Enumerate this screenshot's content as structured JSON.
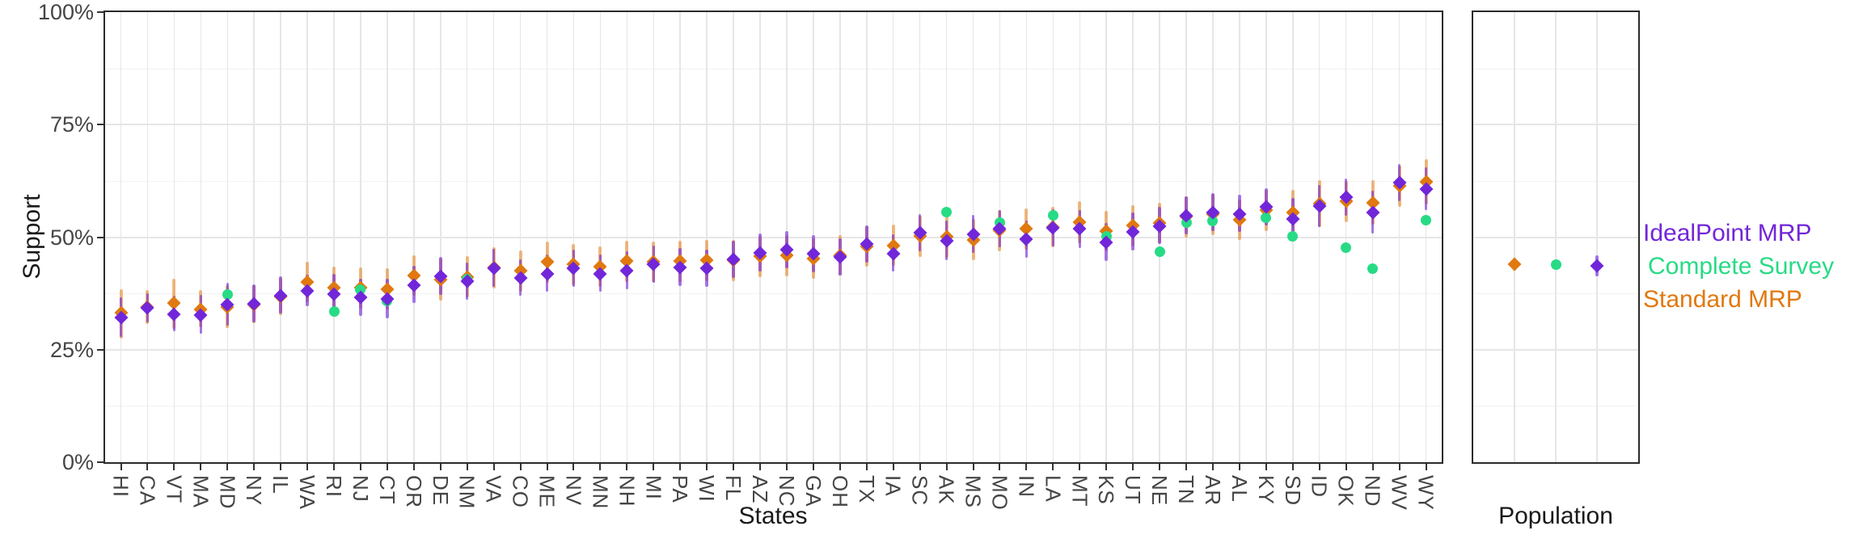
{
  "figure": {
    "y_axis": {
      "title": "Support",
      "tick_labels": [
        "100%",
        "75%",
        "50%",
        "25%",
        "0%"
      ],
      "tick_values": [
        100,
        75,
        50,
        25,
        0
      ],
      "minor_gridline_values": [
        87.5,
        62.5,
        37.5,
        12.5
      ]
    },
    "x_axis_main": {
      "title": "States"
    },
    "x_axis_right": {
      "title": "Population"
    },
    "legend": [
      {
        "label": "IdealPoint MRP",
        "series_key": "idealpoint_mrp",
        "color": "#7226D9"
      },
      {
        "label": "Complete Survey",
        "series_key": "complete_survey",
        "color": "#27DB85"
      },
      {
        "label": "Standard MRP",
        "series_key": "standard_mrp",
        "color": "#E0790F"
      }
    ]
  },
  "colors": {
    "idealpoint_mrp_point": "#7226D9",
    "idealpoint_mrp_bar": "rgba(114,38,217,0.62)",
    "standard_mrp_point": "#E0790F",
    "standard_mrp_bar": "rgba(224,121,15,0.52)",
    "complete_survey_point": "#27DB85",
    "grid_major": "#e6e6e6",
    "grid_minor": "#f2f2f2",
    "panel_border": "#2b2b2b",
    "tick_text": "#454545",
    "axis_title_text": "#1a1a1a"
  },
  "chart_data": [
    {
      "type": "scatter",
      "title": "",
      "xlabel": "States",
      "ylabel": "Support",
      "ylim": [
        0,
        100
      ],
      "y_tick_labels": [
        "0%",
        "25%",
        "50%",
        "75%",
        "100%"
      ],
      "grid": true,
      "legend_position": "right",
      "categories": [
        "HI",
        "CA",
        "VT",
        "MA",
        "MD",
        "NY",
        "IL",
        "WA",
        "RI",
        "NJ",
        "CT",
        "OR",
        "DE",
        "NM",
        "VA",
        "CO",
        "ME",
        "NV",
        "MN",
        "NH",
        "MI",
        "PA",
        "WI",
        "FL",
        "AZ",
        "NC",
        "GA",
        "OH",
        "TX",
        "IA",
        "SC",
        "AK",
        "MS",
        "MO",
        "IN",
        "LA",
        "MT",
        "KS",
        "UT",
        "NE",
        "TN",
        "AR",
        "AL",
        "KY",
        "SD",
        "ID",
        "OK",
        "ND",
        "WV",
        "WY"
      ],
      "series": [
        {
          "name": "IdealPoint MRP",
          "marker": "diamond",
          "units": "percent_support",
          "values": [
            32.2,
            34.3,
            32.8,
            32.7,
            35.0,
            35.1,
            37.0,
            38.0,
            37.4,
            36.6,
            36.3,
            39.4,
            41.3,
            40.2,
            43.1,
            40.9,
            41.9,
            43.0,
            41.9,
            42.6,
            44.0,
            43.3,
            43.1,
            45.0,
            46.5,
            47.2,
            46.3,
            45.6,
            48.4,
            46.4,
            51.0,
            49.2,
            50.7,
            51.9,
            49.5,
            52.0,
            51.8,
            48.9,
            51.2,
            52.5,
            54.8,
            55.5,
            55.2,
            56.7,
            54.0,
            56.9,
            58.9,
            55.5,
            62.1,
            60.7
          ],
          "ci_lo": [
            27.9,
            31.1,
            29.0,
            28.6,
            30.4,
            31.1,
            33.0,
            34.7,
            33.2,
            32.5,
            32.0,
            35.3,
            37.2,
            36.1,
            38.9,
            36.9,
            37.8,
            38.9,
            37.9,
            38.5,
            39.9,
            39.2,
            39.0,
            40.9,
            42.4,
            43.1,
            42.2,
            41.5,
            44.3,
            42.3,
            46.9,
            44.9,
            46.5,
            47.8,
            45.4,
            47.9,
            47.6,
            44.7,
            47.1,
            48.4,
            50.7,
            51.4,
            51.1,
            52.6,
            49.4,
            52.3,
            54.8,
            50.8,
            58.0,
            56.0
          ],
          "ci_hi": [
            36.6,
            37.6,
            37.0,
            37.2,
            39.9,
            39.5,
            41.3,
            41.6,
            41.8,
            40.8,
            40.7,
            43.6,
            45.6,
            44.4,
            47.4,
            45.1,
            46.2,
            47.2,
            46.1,
            46.9,
            48.2,
            47.5,
            47.3,
            49.2,
            50.8,
            51.4,
            50.5,
            49.8,
            52.6,
            50.6,
            55.2,
            53.6,
            55.0,
            56.1,
            53.7,
            56.2,
            56.1,
            53.2,
            55.4,
            56.7,
            59.0,
            59.7,
            59.4,
            60.9,
            58.7,
            61.5,
            63.1,
            60.3,
            66.3,
            65.5
          ]
        },
        {
          "name": "Complete Survey",
          "marker": "circle",
          "units": "percent_support",
          "values": [
            null,
            null,
            null,
            null,
            37.2,
            null,
            null,
            null,
            33.5,
            38.4,
            35.9,
            null,
            null,
            40.6,
            null,
            null,
            null,
            null,
            null,
            null,
            null,
            null,
            null,
            null,
            null,
            null,
            null,
            null,
            null,
            null,
            null,
            55.5,
            null,
            53.3,
            null,
            54.9,
            null,
            50.1,
            null,
            46.8,
            53.2,
            53.6,
            null,
            54.3,
            50.1,
            null,
            47.7,
            43.0,
            null,
            53.8
          ]
        },
        {
          "name": "Standard MRP",
          "marker": "diamond",
          "units": "percent_support",
          "values": [
            33.2,
            34.5,
            35.3,
            34.0,
            34.4,
            35.0,
            36.8,
            40.1,
            38.8,
            38.7,
            38.5,
            41.5,
            40.6,
            41.2,
            43.2,
            42.5,
            44.5,
            43.9,
            43.5,
            44.7,
            44.6,
            44.7,
            44.9,
            44.8,
            45.8,
            45.9,
            45.3,
            46.0,
            48.0,
            48.2,
            50.2,
            50.1,
            49.4,
            51.5,
            51.9,
            52.3,
            53.3,
            51.4,
            52.6,
            53.2,
            54.5,
            55.1,
            53.9,
            56.0,
            55.5,
            57.5,
            57.9,
            57.7,
            61.4,
            62.3
          ],
          "ci_lo": [
            27.4,
            30.7,
            29.7,
            30.0,
            29.8,
            30.8,
            32.6,
            35.5,
            34.3,
            34.2,
            33.9,
            36.9,
            35.9,
            36.6,
            38.6,
            37.9,
            39.9,
            39.3,
            38.9,
            40.1,
            40.0,
            40.1,
            40.3,
            40.2,
            41.2,
            41.3,
            40.7,
            41.4,
            43.4,
            43.6,
            45.6,
            45.4,
            44.8,
            46.9,
            47.3,
            47.7,
            48.7,
            46.8,
            48.0,
            48.6,
            49.9,
            50.5,
            49.3,
            51.4,
            50.5,
            52.3,
            53.3,
            52.7,
            56.8,
            57.3
          ],
          "ci_hi": [
            38.4,
            38.2,
            40.7,
            38.3,
            39.3,
            39.3,
            41.0,
            44.6,
            43.4,
            43.2,
            43.0,
            46.0,
            45.2,
            45.8,
            47.7,
            47.0,
            49.0,
            48.4,
            48.0,
            49.2,
            49.1,
            49.2,
            49.4,
            49.3,
            50.3,
            50.4,
            49.8,
            50.5,
            52.5,
            52.8,
            54.8,
            54.8,
            54.0,
            56.0,
            56.4,
            56.8,
            57.9,
            55.9,
            57.1,
            57.7,
            59.0,
            59.6,
            58.4,
            60.5,
            60.5,
            62.6,
            62.4,
            62.7,
            65.9,
            67.3
          ]
        }
      ]
    },
    {
      "type": "scatter",
      "title": "",
      "xlabel": "Population",
      "ylim": [
        0,
        100
      ],
      "grid": true,
      "points": [
        {
          "name": "Standard MRP",
          "marker": "diamond",
          "value": 44.0,
          "ci_lo": 42.5,
          "ci_hi": 45.4,
          "color_key": "standard_mrp"
        },
        {
          "name": "Complete Survey",
          "marker": "circle",
          "value": 43.9,
          "ci_lo": null,
          "ci_hi": null,
          "color_key": "complete_survey"
        },
        {
          "name": "IdealPoint MRP",
          "marker": "diamond",
          "value": 43.7,
          "ci_lo": 41.3,
          "ci_hi": 45.9,
          "color_key": "idealpoint_mrp"
        }
      ]
    }
  ]
}
